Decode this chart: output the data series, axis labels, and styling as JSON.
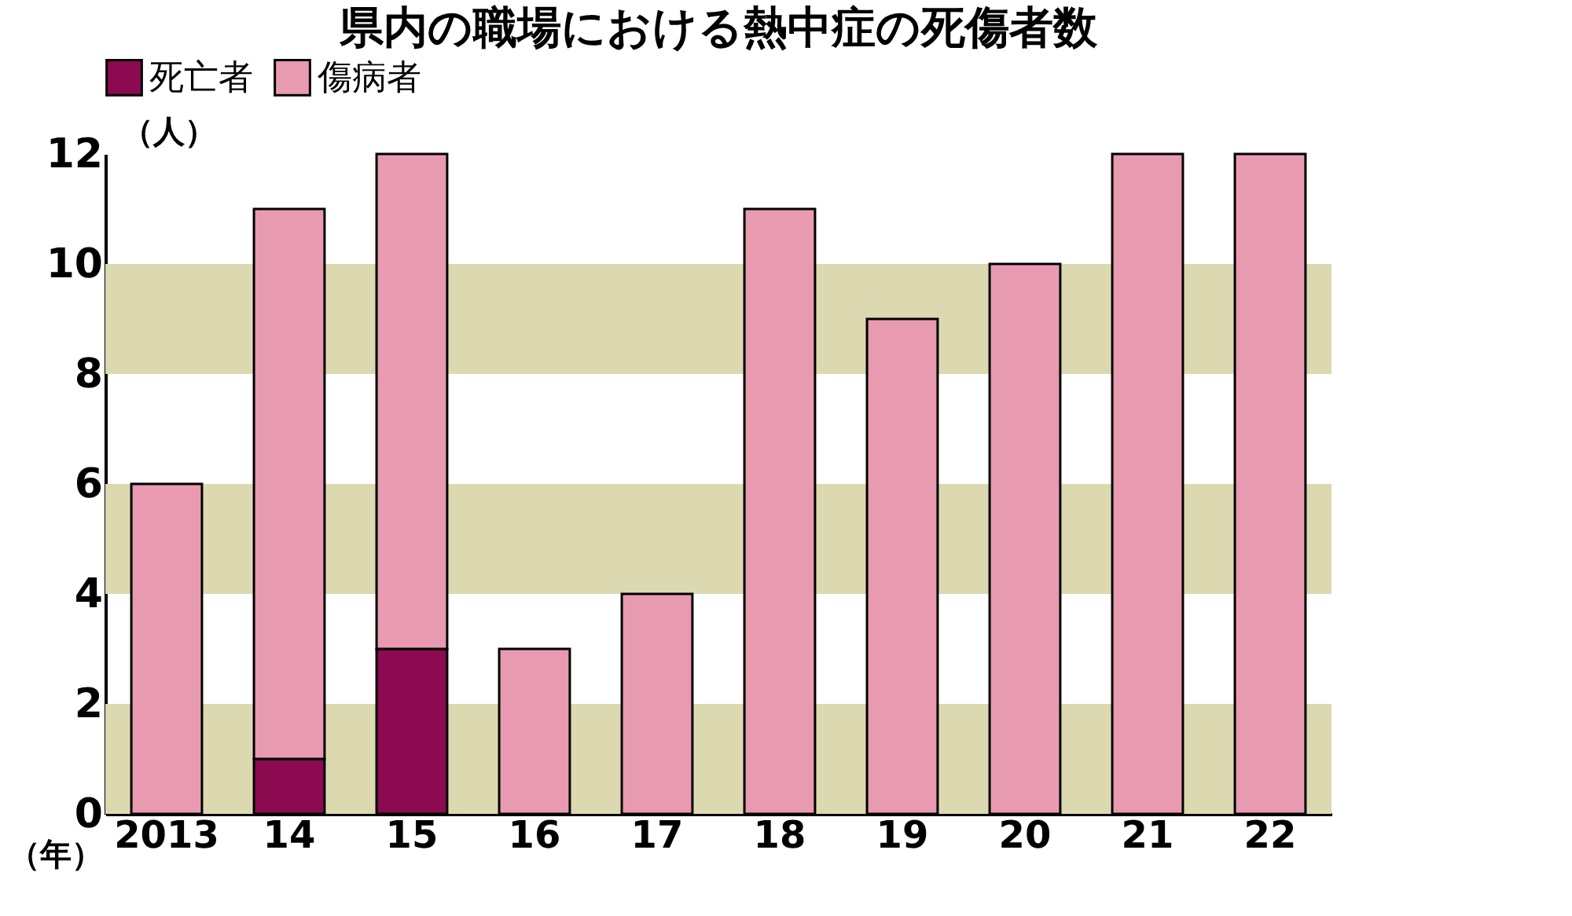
{
  "chart_data": {
    "type": "bar",
    "title": "県内の職場における熱中症の死傷者数",
    "xlabel": "（年）",
    "ylabel": "（人）",
    "categories": [
      "2013",
      "14",
      "15",
      "16",
      "17",
      "18",
      "19",
      "20",
      "21",
      "22"
    ],
    "stacked": true,
    "legend": "top",
    "grid": false,
    "series": [
      {
        "name": "死亡者",
        "color": "#8b0a50",
        "values": [
          0,
          1,
          3,
          0,
          0,
          0,
          0,
          0,
          0,
          0
        ]
      },
      {
        "name": "傷病者",
        "color": "#e89ab0",
        "values": [
          6,
          10,
          9,
          3,
          4,
          11,
          9,
          10,
          12,
          12
        ]
      }
    ],
    "ylim": [
      0,
      12
    ],
    "yticks": [
      0,
      2,
      4,
      6,
      8,
      10,
      12
    ],
    "bands": [
      {
        "axis": "y",
        "from": 0,
        "to": 2,
        "color": "#dcd8b0"
      },
      {
        "axis": "y",
        "from": 4,
        "to": 6,
        "color": "#dcd8b0"
      },
      {
        "axis": "y",
        "from": 8,
        "to": 10,
        "color": "#dcd8b0"
      }
    ]
  }
}
